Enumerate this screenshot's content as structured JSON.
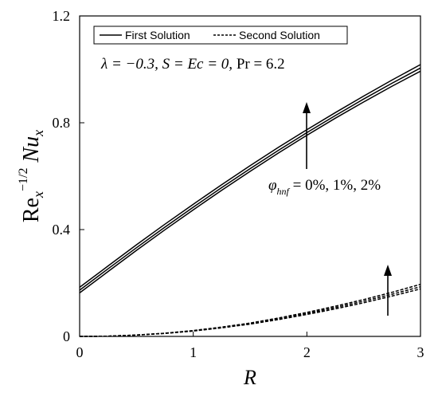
{
  "chart_data": {
    "type": "line",
    "xlabel": "R",
    "ylabel": "Re_x^{-1/2} Nu_x",
    "xlim": [
      0,
      3
    ],
    "ylim": [
      0,
      1.2
    ],
    "x_ticks": [
      "0",
      "1",
      "2",
      "3"
    ],
    "y_ticks": [
      "0",
      "0.4",
      "0.8",
      "1.2"
    ],
    "grid": false,
    "legend_position": "top",
    "legend": [
      "First Solution",
      "Second Solution"
    ],
    "annotation_params": "λ = −0.3, S = Ec = 0, Pr = 6.2",
    "annotation_phi": "φ_hnf = 0%, 1%, 2%",
    "x": [
      0,
      0.25,
      0.5,
      0.75,
      1.0,
      1.25,
      1.5,
      1.75,
      2.0,
      2.25,
      2.5,
      2.75,
      3.0
    ],
    "series": [
      {
        "style": "solid",
        "values": [
          0.163,
          0.243,
          0.322,
          0.399,
          0.474,
          0.547,
          0.618,
          0.687,
          0.753,
          0.817,
          0.878,
          0.937,
          0.993
        ]
      },
      {
        "style": "solid",
        "values": [
          0.173,
          0.253,
          0.332,
          0.409,
          0.484,
          0.557,
          0.628,
          0.697,
          0.763,
          0.827,
          0.889,
          0.948,
          1.005
        ]
      },
      {
        "style": "solid",
        "values": [
          0.184,
          0.264,
          0.343,
          0.42,
          0.495,
          0.568,
          0.639,
          0.708,
          0.774,
          0.838,
          0.9,
          0.96,
          1.018
        ]
      },
      {
        "style": "dashed",
        "values": [
          0.0,
          0.001,
          0.005,
          0.011,
          0.02,
          0.032,
          0.046,
          0.063,
          0.082,
          0.103,
          0.126,
          0.151,
          0.178
        ]
      },
      {
        "style": "dashed",
        "values": [
          0.0,
          0.001,
          0.005,
          0.012,
          0.021,
          0.033,
          0.048,
          0.066,
          0.086,
          0.108,
          0.132,
          0.158,
          0.186
        ]
      },
      {
        "style": "dashed",
        "values": [
          0.0,
          0.001,
          0.005,
          0.012,
          0.022,
          0.035,
          0.05,
          0.069,
          0.09,
          0.113,
          0.138,
          0.165,
          0.195
        ]
      }
    ]
  }
}
